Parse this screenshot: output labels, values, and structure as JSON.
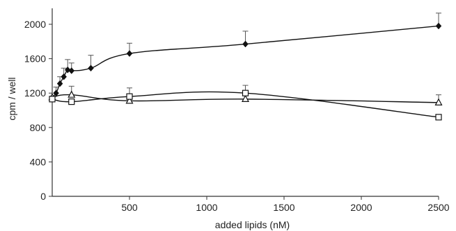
{
  "chart_data": {
    "type": "line",
    "title": "",
    "xlabel": "added lipids (nM)",
    "ylabel": "cpm / well",
    "xlim": [
      0,
      2500
    ],
    "ylim": [
      0,
      2000
    ],
    "xticks": [
      500,
      1000,
      1500,
      2000,
      2500
    ],
    "yticks": [
      0,
      400,
      800,
      1200,
      1600,
      2000
    ],
    "grid": false,
    "legend": "none",
    "series": [
      {
        "marker": "filled-diamond",
        "color": "#111111",
        "x": [
          0,
          25,
          50,
          75,
          100,
          125,
          250,
          500,
          1250,
          2500
        ],
        "y": [
          1150,
          1200,
          1310,
          1390,
          1470,
          1460,
          1490,
          1660,
          1770,
          1980
        ],
        "error_plus": [
          0,
          70,
          80,
          100,
          120,
          90,
          150,
          120,
          150,
          150
        ]
      },
      {
        "marker": "open-triangle",
        "color": "#111111",
        "x": [
          0,
          125,
          500,
          1250,
          2500
        ],
        "y": [
          1150,
          1180,
          1110,
          1130,
          1090
        ],
        "error_plus": [
          0,
          100,
          0,
          0,
          90
        ]
      },
      {
        "marker": "open-square",
        "color": "#111111",
        "x": [
          0,
          125,
          500,
          1250,
          2500
        ],
        "y": [
          1130,
          1100,
          1160,
          1200,
          920
        ],
        "error_plus": [
          0,
          0,
          100,
          90,
          0
        ]
      }
    ]
  }
}
